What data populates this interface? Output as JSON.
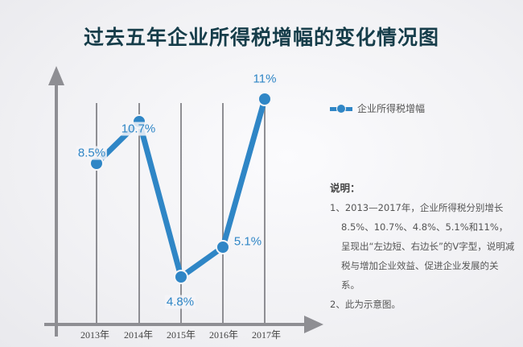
{
  "title": "过去五年企业所得税增幅的变化情况图",
  "legend": {
    "label": "企业所得税增幅",
    "color": "#2f86c6"
  },
  "note": {
    "heading": "说明：",
    "items": [
      "1、2013—2017年，企业所得税分别增长8.5%、10.7%、4.8%、5.1%和11%，呈现出“左边短、右边长”的V字型，说明减税与增加企业效益、促进企业发展的关系。",
      "2、此为示意图。"
    ]
  },
  "colors": {
    "line": "#2f86c6",
    "axis": "#8e8e93",
    "title": "#163d4a"
  },
  "chart_data": {
    "type": "line",
    "title": "过去五年企业所得税增幅的变化情况图",
    "categories": [
      "2013年",
      "2014年",
      "2015年",
      "2016年",
      "2017年"
    ],
    "series": [
      {
        "name": "企业所得税增幅",
        "values": [
          8.5,
          10.7,
          4.8,
          5.1,
          11
        ],
        "unit": "%"
      }
    ],
    "data_labels": [
      "8.5%",
      "10.7%",
      "4.8%",
      "5.1%",
      "11%"
    ],
    "xlabel": "",
    "ylabel": "",
    "grid": "vertical lines at each category",
    "legend_position": "right",
    "y_axis_ticks": "none (schematic)"
  }
}
